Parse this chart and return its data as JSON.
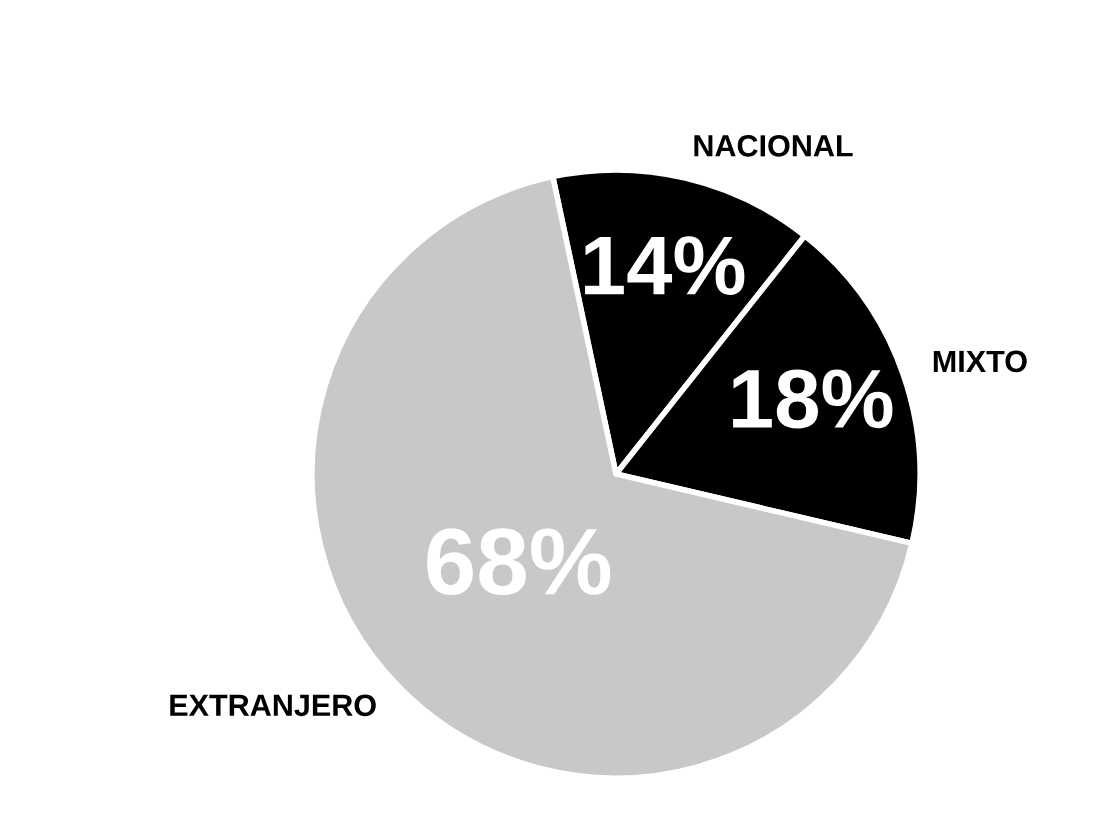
{
  "chart_data": {
    "type": "pie",
    "categories": [
      "NACIONAL",
      "MIXTO",
      "EXTRANJERO"
    ],
    "values": [
      14,
      18,
      68
    ],
    "value_labels": [
      "14%",
      "18%",
      "68%"
    ],
    "colors": [
      "#000000",
      "#000000",
      "#c8c8c8"
    ],
    "legend": false
  }
}
